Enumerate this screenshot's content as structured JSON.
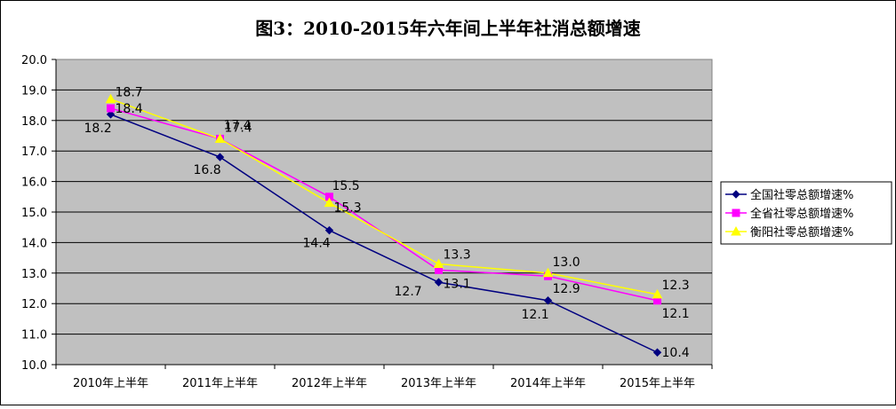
{
  "chart_data": {
    "type": "line",
    "title": "图3：2010-2015年六年间上半年社消总额增速",
    "xlabel": "",
    "ylabel": "",
    "categories": [
      "2010年上半年",
      "2011年上半年",
      "2012年上半年",
      "2013年上半年",
      "2014年上半年",
      "2015年上半年"
    ],
    "ylim": [
      10.0,
      20.0
    ],
    "yticks": [
      "20.0",
      "19.0",
      "18.0",
      "17.0",
      "16.0",
      "15.0",
      "14.0",
      "13.0",
      "12.0",
      "11.0",
      "10.0"
    ],
    "grid": true,
    "legend_position": "right",
    "series": [
      {
        "name": "全国社零总额增速%",
        "values": [
          18.2,
          16.8,
          14.4,
          12.7,
          12.1,
          10.4
        ],
        "labels": [
          "18.2",
          "16.8",
          "14.4",
          "12.7",
          "12.1",
          "10.4"
        ],
        "color": "#000080",
        "marker": "diamond"
      },
      {
        "name": "全省社零总额增速%",
        "values": [
          18.4,
          17.4,
          15.5,
          13.1,
          12.9,
          12.1
        ],
        "labels": [
          "18.4",
          "17.4",
          "15.5",
          "13.1",
          "12.9",
          "12.1"
        ],
        "color": "#FF00FF",
        "marker": "square"
      },
      {
        "name": "衡阳社零总额增速%",
        "values": [
          18.7,
          17.4,
          15.3,
          13.3,
          13.0,
          12.3
        ],
        "labels": [
          "18.7",
          "17.4",
          "15.3",
          "13.3",
          "13.0",
          "12.3"
        ],
        "color": "#FFFF00",
        "marker": "triangle"
      }
    ],
    "colors": {
      "plot_background": "#C0C0C0",
      "gridline": "#000000"
    }
  }
}
